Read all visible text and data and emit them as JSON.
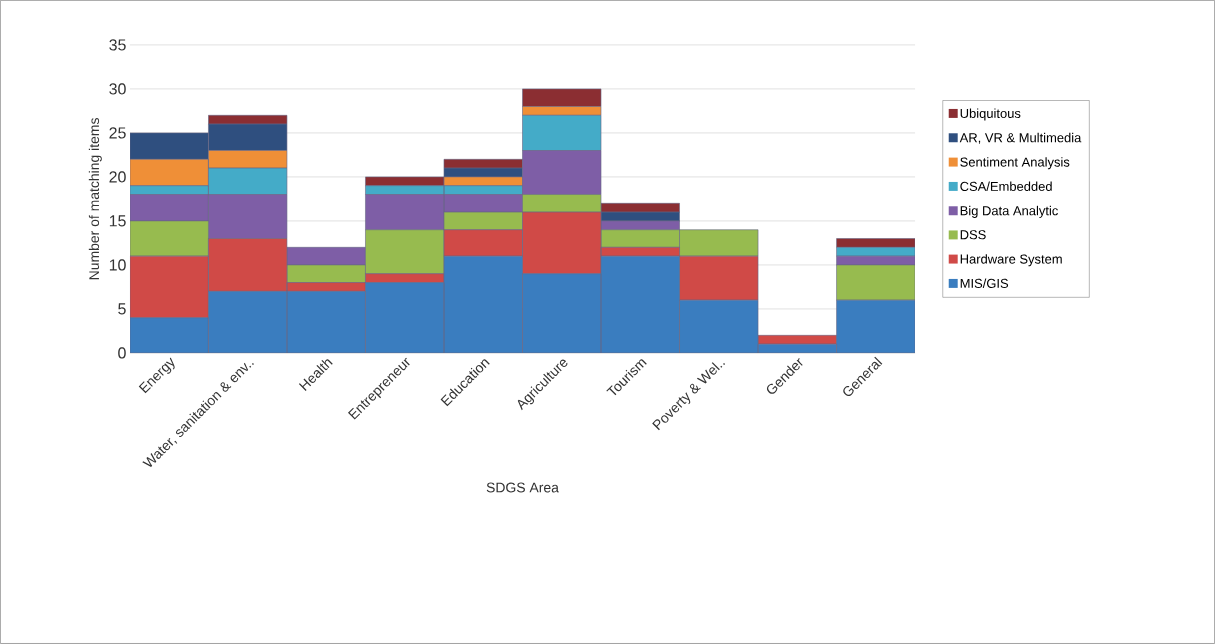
{
  "chart_data": {
    "type": "bar",
    "stacked": true,
    "xlabel": "SDGS Area",
    "ylabel": "Number of matching items",
    "categories": [
      "Energy",
      "Water, sanitation & env..",
      "Health",
      "Entrepreneur",
      "Education",
      "Agriculture",
      "Tourism",
      "Poverty & Wel..",
      "Gender",
      "General"
    ],
    "series": [
      {
        "name": "MIS/GIS",
        "color": "#3a7dbf",
        "values": [
          4,
          7,
          7,
          8,
          11,
          9,
          11,
          6,
          1,
          6
        ]
      },
      {
        "name": "Hardware System",
        "color": "#d04a47",
        "values": [
          7,
          6,
          1,
          1,
          3,
          7,
          1,
          5,
          1,
          0
        ]
      },
      {
        "name": "DSS",
        "color": "#97bb4f",
        "values": [
          4,
          0,
          2,
          5,
          2,
          2,
          2,
          3,
          0,
          4
        ]
      },
      {
        "name": "Big Data Analytic",
        "color": "#7e5ea6",
        "values": [
          3,
          5,
          2,
          4,
          2,
          5,
          1,
          0,
          0,
          1
        ]
      },
      {
        "name": "CSA/Embedded",
        "color": "#44abc8",
        "values": [
          1,
          3,
          0,
          1,
          1,
          4,
          0,
          0,
          0,
          1
        ]
      },
      {
        "name": "Sentiment Analysis",
        "color": "#ef8f37",
        "values": [
          3,
          2,
          0,
          0,
          1,
          1,
          0,
          0,
          0,
          0
        ]
      },
      {
        "name": "AR, VR & Multimedia",
        "color": "#2f4f7f",
        "values": [
          3,
          3,
          0,
          0,
          1,
          0,
          1,
          0,
          0,
          0
        ]
      },
      {
        "name": "Ubiquitous",
        "color": "#8b2e32",
        "values": [
          0,
          1,
          0,
          1,
          1,
          2,
          1,
          0,
          0,
          1
        ]
      }
    ],
    "ylim": [
      0,
      35
    ],
    "yticks": [
      0,
      5,
      10,
      15,
      20,
      25,
      30,
      35
    ],
    "grid": "y",
    "legend": "right"
  }
}
